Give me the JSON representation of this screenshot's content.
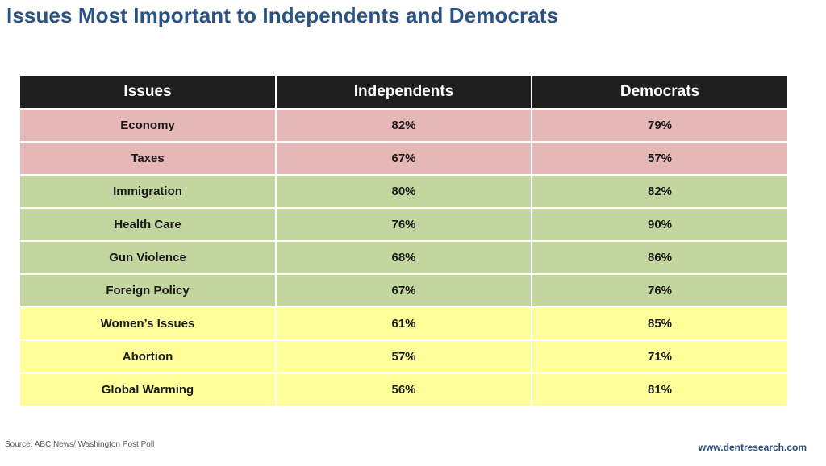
{
  "title": "Issues Most Important to Independents and Democrats",
  "chart_data": {
    "type": "table",
    "title": "Issues Most Important to Independents and Democrats",
    "columns": [
      "Issues",
      "Independents",
      "Democrats"
    ],
    "rows": [
      {
        "issue": "Economy",
        "independents": "82%",
        "democrats": "79%",
        "group": "red"
      },
      {
        "issue": "Taxes",
        "independents": "67%",
        "democrats": "57%",
        "group": "red"
      },
      {
        "issue": "Immigration",
        "independents": "80%",
        "democrats": "82%",
        "group": "green"
      },
      {
        "issue": "Health Care",
        "independents": "76%",
        "democrats": "90%",
        "group": "green"
      },
      {
        "issue": "Gun Violence",
        "independents": "68%",
        "democrats": "86%",
        "group": "green"
      },
      {
        "issue": "Foreign Policy",
        "independents": "67%",
        "democrats": "76%",
        "group": "green"
      },
      {
        "issue": "Women’s Issues",
        "independents": "61%",
        "democrats": "85%",
        "group": "yellow"
      },
      {
        "issue": "Abortion",
        "independents": "57%",
        "democrats": "71%",
        "group": "yellow"
      },
      {
        "issue": "Global Warming",
        "independents": "56%",
        "democrats": "81%",
        "group": "yellow"
      }
    ],
    "colors": {
      "header_bg": "#1f1f1f",
      "red": "#e5b8b7",
      "green": "#c4d6a0",
      "yellow": "#ffff99",
      "title": "#2a5285"
    }
  },
  "footer": {
    "source": "Source: ABC News/ Washington Post Poll",
    "website": "www.dentresearch.com"
  }
}
